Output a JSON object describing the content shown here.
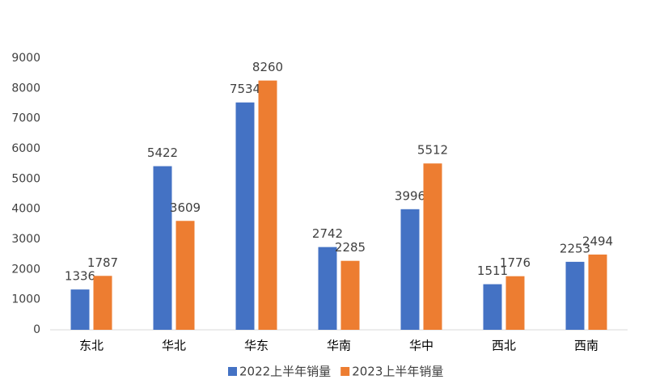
{
  "chart_data": {
    "type": "bar",
    "categories": [
      "东北",
      "华北",
      "华东",
      "华南",
      "华中",
      "西北",
      "西南"
    ],
    "series": [
      {
        "name": "2022上半年销量",
        "color": "#4472c4",
        "values": [
          1336,
          5422,
          7534,
          2742,
          3996,
          1511,
          2253
        ]
      },
      {
        "name": "2023上半年销量",
        "color": "#ed7d31",
        "values": [
          1787,
          3609,
          8260,
          2285,
          5512,
          1776,
          2494
        ]
      }
    ],
    "ylim": [
      0,
      9000
    ],
    "yticks": [
      0,
      1000,
      2000,
      3000,
      4000,
      5000,
      6000,
      7000,
      8000,
      9000
    ],
    "grid": false,
    "legend": "bottom"
  }
}
